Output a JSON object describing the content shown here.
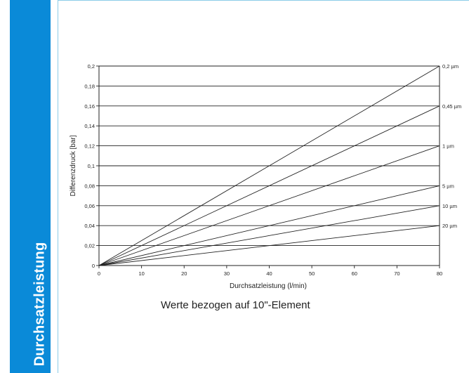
{
  "sidebar": {
    "title": "Durchsatzleistung"
  },
  "caption": "Werte bezogen auf 10\"-Element",
  "colors": {
    "sidebar": "#0a8ad8",
    "panel_border": "#8ccce8",
    "lines": "#222222"
  },
  "chart_data": {
    "type": "line",
    "title": "",
    "xlabel": "Durchsatzleistung (l/min)",
    "ylabel": "Differenzdruck [bar]",
    "xlim": [
      0,
      80
    ],
    "ylim": [
      0,
      0.2
    ],
    "grid": true,
    "x_ticks": [
      "0",
      "10",
      "20",
      "30",
      "40",
      "50",
      "60",
      "70",
      "80"
    ],
    "y_ticks": [
      "0",
      "0,02",
      "0,04",
      "0,06",
      "0,08",
      "0,1",
      "0,12",
      "0,14",
      "0,16",
      "0,18",
      "0,2"
    ],
    "series": [
      {
        "name": "0,2 µm",
        "x": [
          0,
          80
        ],
        "y": [
          0,
          0.2
        ]
      },
      {
        "name": "0,45 µm",
        "x": [
          0,
          80
        ],
        "y": [
          0,
          0.16
        ]
      },
      {
        "name": "1 µm",
        "x": [
          0,
          80
        ],
        "y": [
          0,
          0.12
        ]
      },
      {
        "name": "5 µm",
        "x": [
          0,
          80
        ],
        "y": [
          0,
          0.08
        ]
      },
      {
        "name": "10 µm",
        "x": [
          0,
          80
        ],
        "y": [
          0,
          0.06
        ]
      },
      {
        "name": "20 µm",
        "x": [
          0,
          80
        ],
        "y": [
          0,
          0.04
        ]
      }
    ]
  }
}
